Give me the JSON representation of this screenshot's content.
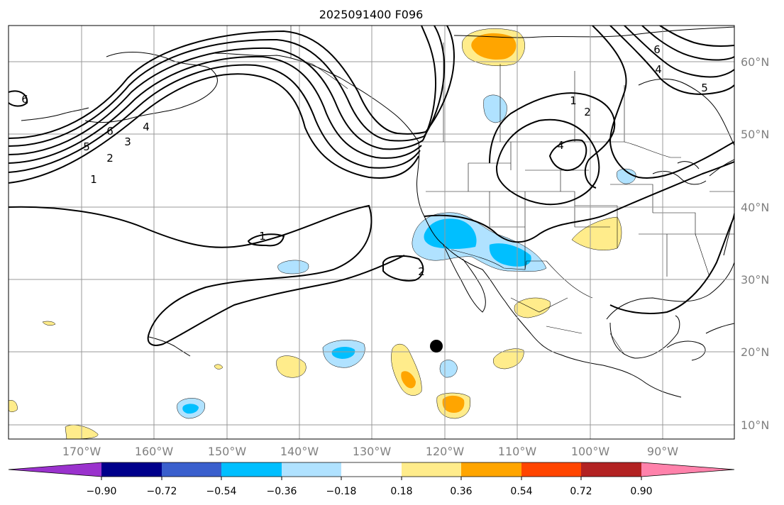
{
  "title": "2025091400 F096",
  "lat_labels": [
    "60°N",
    "50°N",
    "40°N",
    "30°N",
    "20°N",
    "10°N"
  ],
  "lon_labels": [
    "170°W",
    "160°W",
    "150°W",
    "140°W",
    "130°W",
    "120°W",
    "110°W",
    "100°W",
    "90°W"
  ],
  "colorbar": {
    "tick_labels": [
      "−0.90",
      "−0.72",
      "−0.54",
      "−0.36",
      "−0.18",
      "0.18",
      "0.36",
      "0.54",
      "0.72",
      "0.90"
    ],
    "colors": [
      "#9a32cd",
      "#00008b",
      "#3a5fcd",
      "#00bfff",
      "#b0e2ff",
      "#ffffff",
      "#ffec8b",
      "#ffa500",
      "#ff4500",
      "#b22222",
      "#ff82ab"
    ]
  },
  "contour_labels": [
    "6",
    "5",
    "2",
    "3",
    "4",
    "1",
    "1",
    "2",
    "6",
    "4",
    "5",
    "1",
    "2",
    "4",
    "6"
  ],
  "fill_colors": {
    "neg1": "#b0e2ff",
    "neg2": "#00bfff",
    "pos1": "#ffec8b",
    "pos2": "#ffa500"
  },
  "marker": "storm-center"
}
